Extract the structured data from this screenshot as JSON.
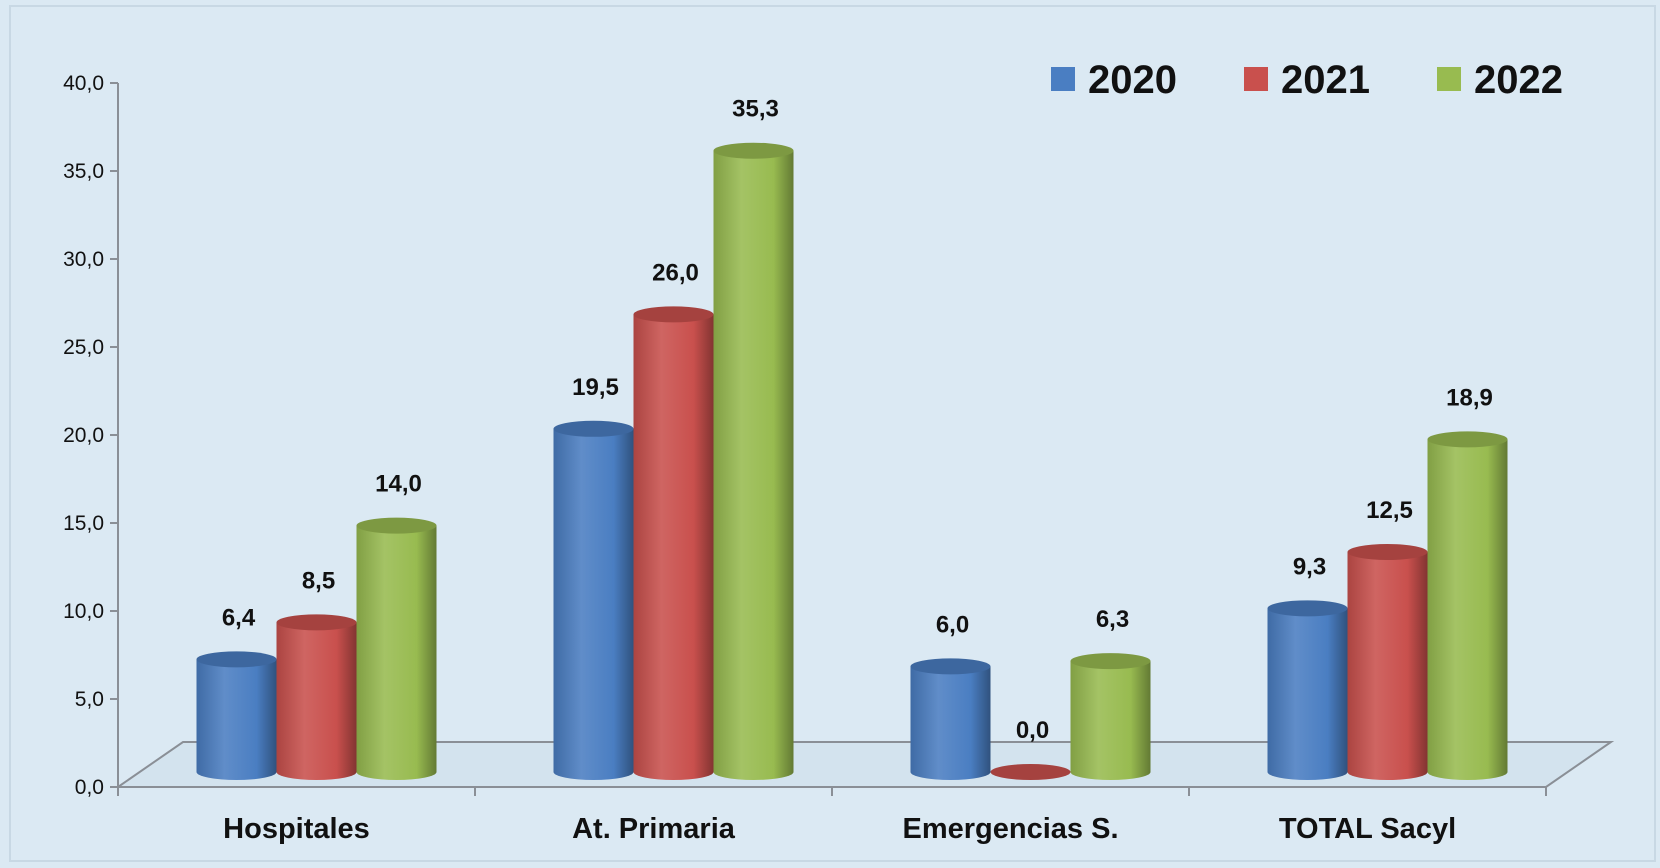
{
  "colors": {
    "background": "#dbe9f3",
    "series": [
      "#4a7ec2",
      "#c9504d",
      "#98bb50"
    ]
  },
  "chart_data": {
    "type": "bar",
    "title": "",
    "xlabel": "",
    "ylabel": "",
    "categories": [
      "Hospitales",
      "At. Primaria",
      "Emergencias S.",
      "TOTAL Sacyl"
    ],
    "series": [
      {
        "name": "2020",
        "values": [
          6.4,
          19.5,
          6.0,
          9.3
        ],
        "labels": [
          "6,4",
          "19,5",
          "6,0",
          "9,3"
        ]
      },
      {
        "name": "2021",
        "values": [
          8.5,
          26.0,
          0.0,
          12.5
        ],
        "labels": [
          "8,5",
          "26,0",
          "0,0",
          "12,5"
        ]
      },
      {
        "name": "2022",
        "values": [
          14.0,
          35.3,
          6.3,
          18.9
        ],
        "labels": [
          "14,0",
          "35,3",
          "6,3",
          "18,9"
        ]
      }
    ],
    "ylim": [
      0,
      40
    ],
    "yticks": [
      0,
      5,
      10,
      15,
      20,
      25,
      30,
      35,
      40
    ],
    "ytick_labels": [
      "0,0",
      "5,0",
      "10,0",
      "15,0",
      "20,0",
      "25,0",
      "30,0",
      "35,0",
      "40,0"
    ],
    "grid": false,
    "legend": "top-right",
    "style": "3d-cylinder"
  }
}
